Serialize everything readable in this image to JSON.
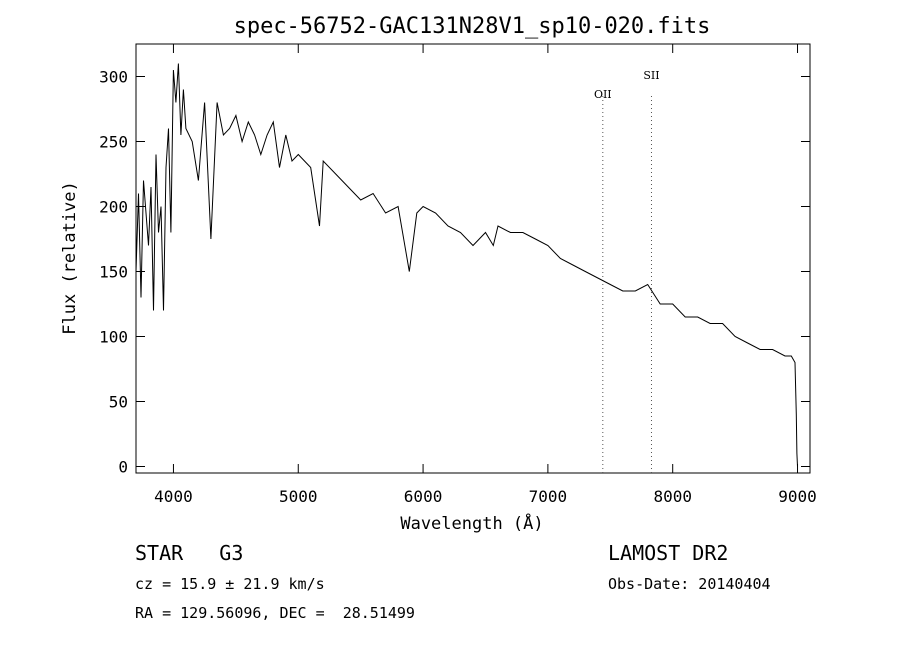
{
  "chart_data": {
    "type": "line",
    "title": "spec-56752-GAC131N28V1_sp10-020.fits",
    "xlabel": "Wavelength (Å)",
    "ylabel": "Flux (relative)",
    "xlim": [
      3700,
      9100
    ],
    "ylim": [
      -5,
      325
    ],
    "xticks": [
      4000,
      5000,
      6000,
      7000,
      8000,
      9000
    ],
    "yticks": [
      0,
      50,
      100,
      150,
      200,
      250,
      300
    ],
    "grid": false,
    "series": [
      {
        "x": [
          3700,
          3720,
          3740,
          3760,
          3780,
          3800,
          3820,
          3840,
          3860,
          3880,
          3900,
          3920,
          3940,
          3960,
          3980,
          4000,
          4020,
          4040,
          4060,
          4080,
          4100,
          4150,
          4200,
          4250,
          4300,
          4350,
          4400,
          4450,
          4500,
          4550,
          4600,
          4650,
          4700,
          4750,
          4800,
          4850,
          4900,
          4950,
          5000,
          5100,
          5170,
          5200,
          5300,
          5400,
          5500,
          5600,
          5700,
          5800,
          5890,
          5950,
          6000,
          6100,
          6200,
          6300,
          6400,
          6500,
          6563,
          6600,
          6700,
          6800,
          6900,
          7000,
          7100,
          7200,
          7300,
          7400,
          7500,
          7600,
          7700,
          7800,
          7900,
          8000,
          8100,
          8200,
          8300,
          8400,
          8500,
          8600,
          8700,
          8800,
          8900,
          8950,
          8980,
          8990,
          8995,
          9000
        ],
        "y": [
          150,
          210,
          130,
          220,
          195,
          170,
          215,
          120,
          240,
          180,
          200,
          120,
          230,
          260,
          180,
          305,
          280,
          310,
          255,
          290,
          260,
          250,
          220,
          280,
          175,
          280,
          255,
          260,
          270,
          250,
          265,
          255,
          240,
          255,
          265,
          230,
          255,
          235,
          240,
          230,
          185,
          235,
          225,
          215,
          205,
          210,
          195,
          200,
          150,
          195,
          200,
          195,
          185,
          180,
          170,
          180,
          170,
          185,
          180,
          180,
          175,
          170,
          160,
          155,
          150,
          145,
          140,
          135,
          135,
          140,
          125,
          125,
          115,
          115,
          110,
          110,
          100,
          95,
          90,
          90,
          85,
          85,
          80,
          40,
          10,
          0
        ]
      }
    ],
    "annotations": [
      {
        "label": "OII",
        "x": 7440
      },
      {
        "label": "SII",
        "x": 7830
      }
    ]
  },
  "footer": {
    "class_text": "STAR   G3",
    "cz_text": "cz = 15.9 ± 21.9 km/s",
    "coords_text": "RA = 129.56096, DEC =  28.51499",
    "survey_text": "LAMOST DR2",
    "obsdate_text": "Obs-Date: 20140404"
  }
}
